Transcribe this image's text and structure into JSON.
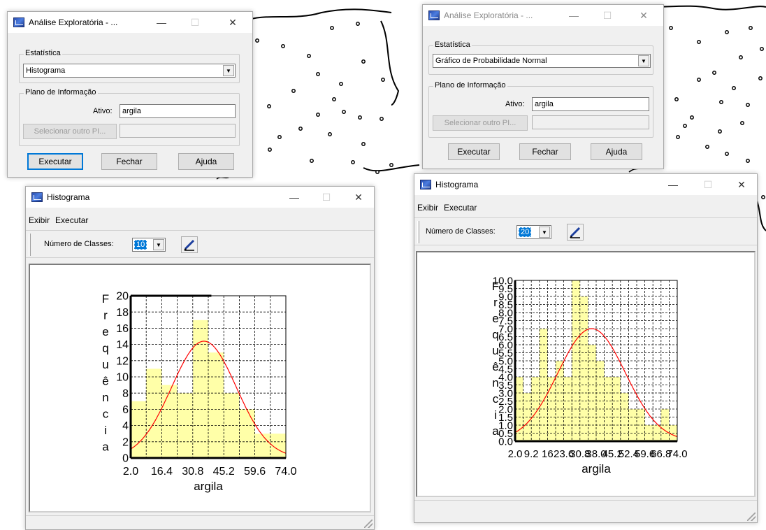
{
  "left": {
    "analysis": {
      "title": "Análise Exploratória - ...",
      "stat_group": "Estatística",
      "stat_value": "Histograma",
      "info_group": "Plano de Informação",
      "active_label": "Ativo:",
      "active_value": "argila",
      "select_other": "Selecionar outro PI...",
      "execute": "Executar",
      "close": "Fechar",
      "help": "Ajuda"
    },
    "histogram": {
      "title": "Histograma",
      "menu": [
        "Exibir",
        "Executar"
      ],
      "classes_label": "Número de Classes:",
      "classes_value": "10"
    }
  },
  "right": {
    "analysis": {
      "title": "Análise Exploratória - ...",
      "stat_group": "Estatística",
      "stat_value": "Gráfico de Probabilidade Normal",
      "info_group": "Plano de Informação",
      "active_label": "Ativo:",
      "active_value": "argila",
      "select_other": "Selecionar outro PI...",
      "execute": "Executar",
      "close": "Fechar",
      "help": "Ajuda"
    },
    "histogram": {
      "title": "Histograma",
      "menu": [
        "Exibir",
        "Executar"
      ],
      "classes_label": "Número de Classes:",
      "classes_value": "20"
    }
  },
  "window_controls": {
    "minimize": "—",
    "maximize": "☐",
    "close": "✕"
  },
  "icons": {
    "pencil": "pencil-icon",
    "app": "app-window-icon"
  },
  "colors": {
    "bar_fill": "#ffffa8",
    "curve": "#ff0000",
    "axis": "#000000"
  },
  "chart_data": [
    {
      "type": "bar",
      "xlabel": "argila",
      "ylabel": "Frequência",
      "ylabel_chars": [
        "F",
        "r",
        "e",
        "q",
        "u",
        "ê",
        "n",
        "c",
        "i",
        "a"
      ],
      "xlim": [
        2.0,
        74.0
      ],
      "ylim": [
        0,
        20
      ],
      "grid": true,
      "x_ticks": [
        "2.0",
        "16.4",
        "30.8",
        "45.2",
        "59.6",
        "74.0"
      ],
      "y_ticks": [
        "0",
        "2",
        "4",
        "6",
        "8",
        "10",
        "12",
        "14",
        "16",
        "18",
        "20"
      ],
      "values": [
        7,
        11,
        9,
        8,
        17,
        13,
        8,
        6,
        3,
        3
      ],
      "curve_mean": 36.0,
      "curve_sd": 15.0,
      "curve_peak": 14.4
    },
    {
      "type": "bar",
      "xlabel": "argila",
      "ylabel": "Frequência",
      "ylabel_chars": [
        "F",
        "r",
        "e",
        "q",
        "u",
        "ê",
        "n",
        "c",
        "i",
        "a"
      ],
      "xlim": [
        2.0,
        74.0
      ],
      "ylim": [
        0,
        10
      ],
      "grid": true,
      "x_ticks": [
        "2.0",
        "9.2",
        "16.4",
        "23.6",
        "30.8",
        "38.0",
        "45.2",
        "52.4",
        "59.6",
        "66.8",
        "74.0"
      ],
      "x_tick_display": [
        "2.0",
        "9.2",
        "16",
        "23.6",
        "30.8",
        "38.0",
        "45.2",
        "52.4",
        "59.6",
        "66.8",
        "74.0"
      ],
      "y_ticks": [
        "0.0",
        "0.5",
        "1.0",
        "1.5",
        "2.0",
        "2.5",
        "3.0",
        "3.5",
        "4.0",
        "4.5",
        "5.0",
        "5.5",
        "6.0",
        "6.5",
        "7.0",
        "7.5",
        "8.0",
        "8.5",
        "9.0",
        "9.5",
        "10.0"
      ],
      "values": [
        4,
        3,
        4,
        7,
        4,
        5,
        4,
        10,
        9,
        6,
        5,
        4,
        4,
        3,
        2,
        2,
        1,
        1,
        2,
        1
      ],
      "curve_mean": 36.0,
      "curve_sd": 15.0,
      "curve_peak": 7.0
    }
  ]
}
